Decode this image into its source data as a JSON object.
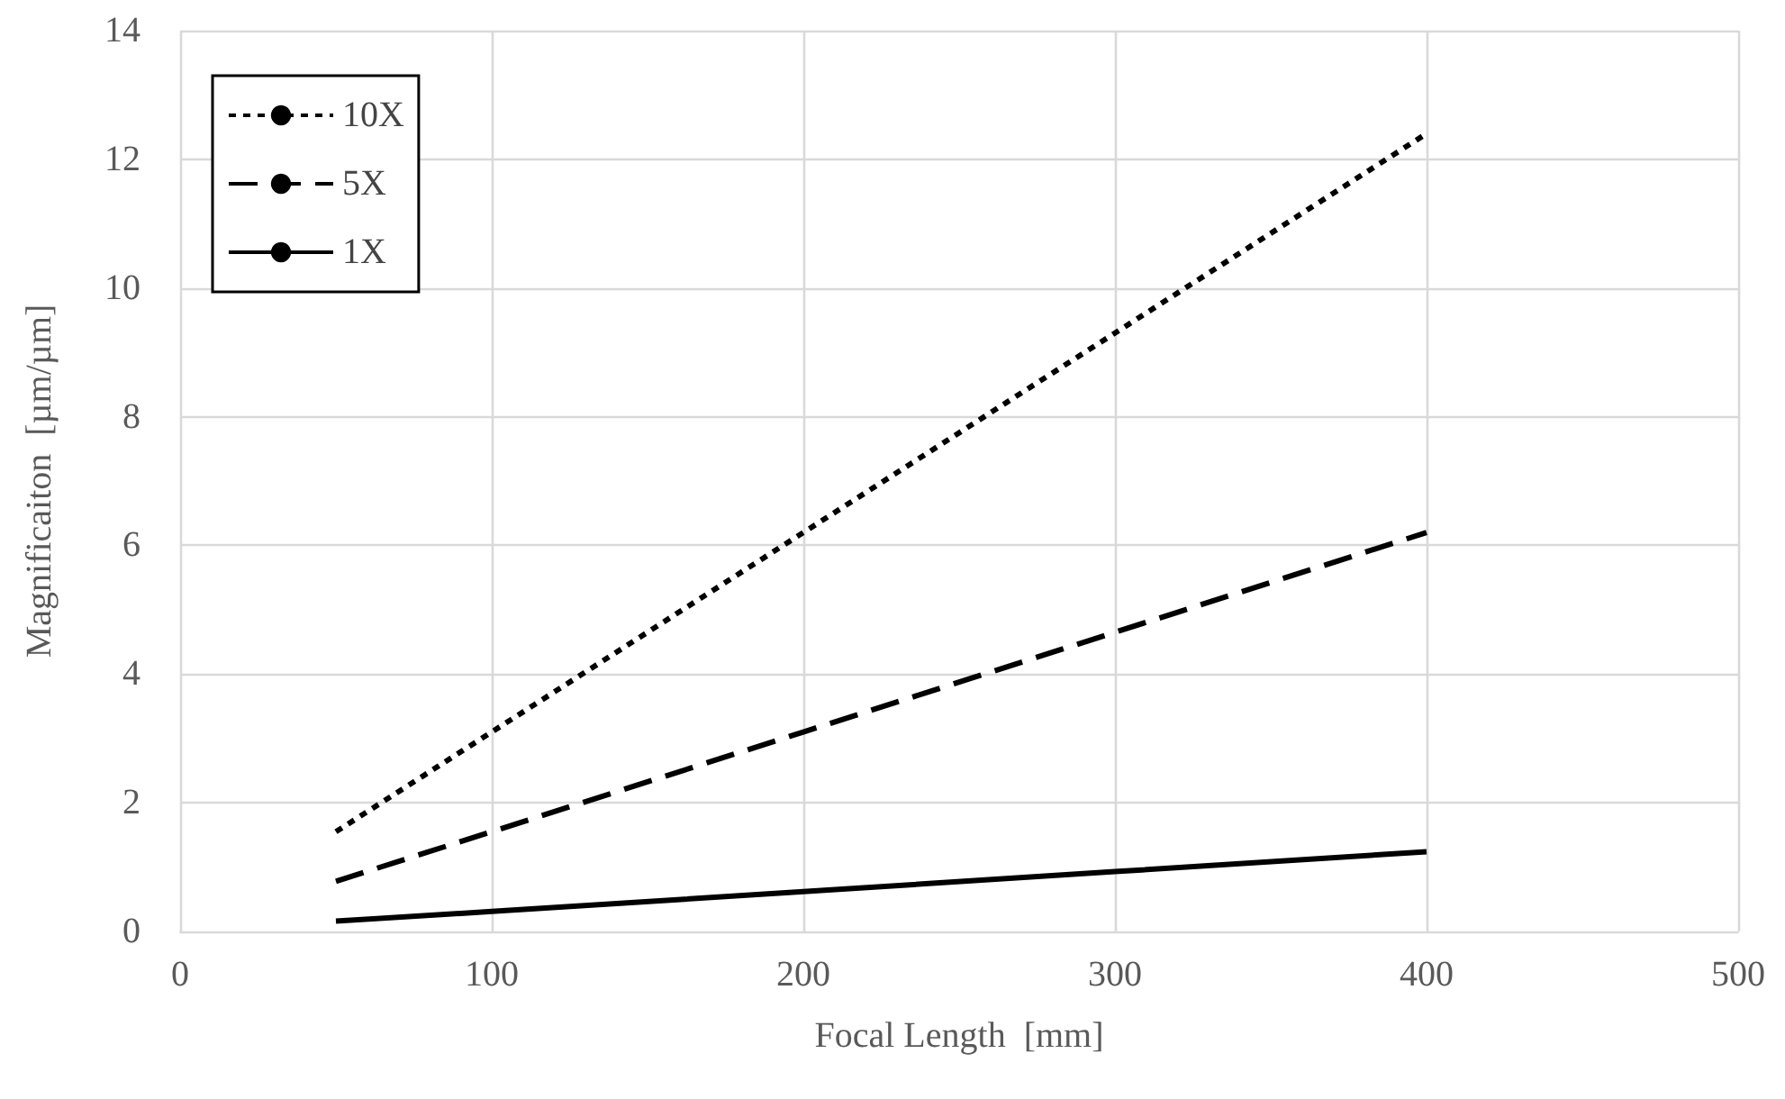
{
  "chart_data": {
    "type": "line",
    "xlabel": "Focal Length  [mm]",
    "ylabel": "Magnificaiton  [µm/µm]",
    "x": [
      50,
      100,
      200,
      300,
      400
    ],
    "series": [
      {
        "name": "10X",
        "color": "#000000",
        "line_style": "dotted",
        "values": [
          1.55,
          3.1,
          6.2,
          9.3,
          12.4
        ]
      },
      {
        "name": "5X",
        "color": "#000000",
        "line_style": "dashed",
        "values": [
          0.78,
          1.55,
          3.1,
          4.65,
          6.2
        ]
      },
      {
        "name": "1X",
        "color": "#000000",
        "line_style": "solid",
        "values": [
          0.16,
          0.31,
          0.62,
          0.93,
          1.24
        ]
      }
    ],
    "xlim": [
      0,
      500
    ],
    "xticks": [
      0,
      100,
      200,
      300,
      400,
      500
    ],
    "ylim": [
      0,
      14
    ],
    "yticks": [
      0,
      2,
      4,
      6,
      8,
      10,
      12,
      14
    ],
    "grid": true,
    "legend": "top left",
    "marker": "none"
  }
}
